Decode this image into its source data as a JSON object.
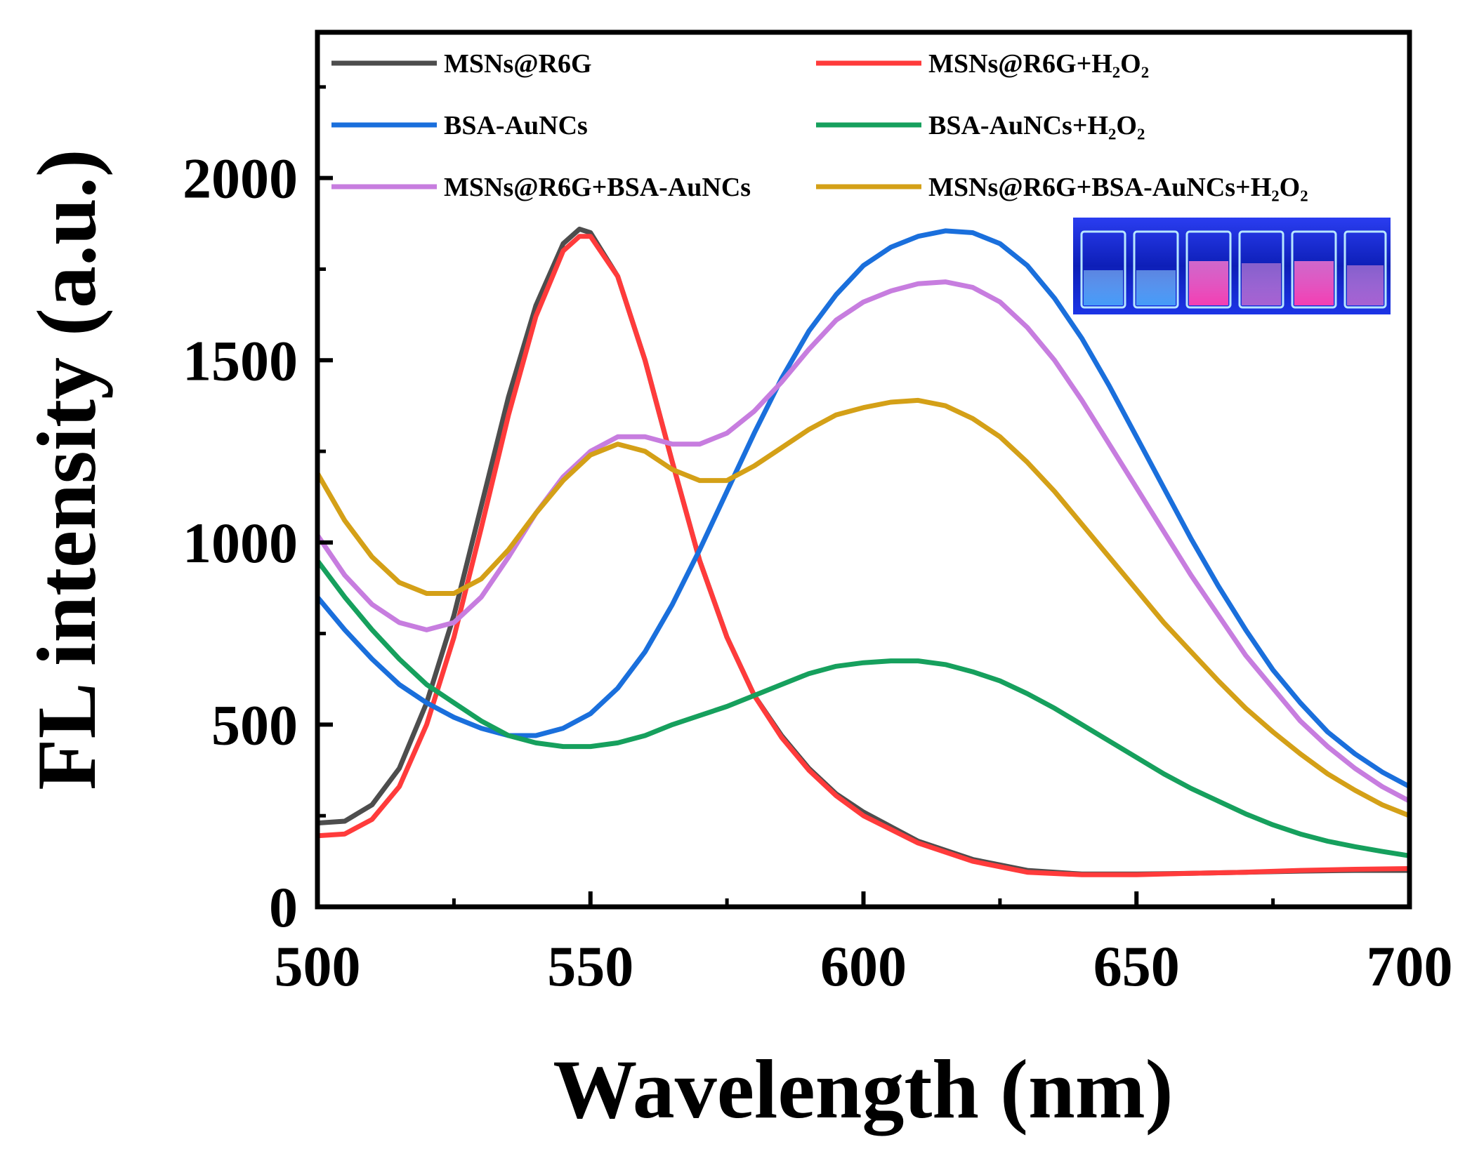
{
  "chart_data": {
    "type": "line",
    "xlabel": "Wavelength (nm)",
    "ylabel": "FL intensity (a.u.)",
    "xlim": [
      500,
      700
    ],
    "ylim": [
      0,
      2400
    ],
    "xticks": [
      500,
      550,
      600,
      650,
      700
    ],
    "xtick_labels": [
      "500",
      "550",
      "600",
      "650",
      "700"
    ],
    "yticks": [
      0,
      500,
      1000,
      1500,
      2000
    ],
    "ytick_labels": [
      "0",
      "500",
      "1000",
      "1500",
      "2000"
    ],
    "legend_position": "top",
    "series": [
      {
        "name": "MSNs@R6G",
        "color": "#4d4d4d",
        "points": [
          [
            500,
            230
          ],
          [
            505,
            235
          ],
          [
            510,
            280
          ],
          [
            515,
            380
          ],
          [
            520,
            560
          ],
          [
            525,
            800
          ],
          [
            530,
            1100
          ],
          [
            535,
            1400
          ],
          [
            540,
            1650
          ],
          [
            545,
            1820
          ],
          [
            548,
            1860
          ],
          [
            550,
            1850
          ],
          [
            555,
            1730
          ],
          [
            560,
            1500
          ],
          [
            565,
            1220
          ],
          [
            570,
            950
          ],
          [
            575,
            740
          ],
          [
            580,
            580
          ],
          [
            585,
            470
          ],
          [
            590,
            380
          ],
          [
            595,
            310
          ],
          [
            600,
            260
          ],
          [
            610,
            180
          ],
          [
            620,
            130
          ],
          [
            630,
            100
          ],
          [
            640,
            90
          ],
          [
            650,
            90
          ],
          [
            660,
            92
          ],
          [
            670,
            95
          ],
          [
            680,
            98
          ],
          [
            690,
            100
          ],
          [
            700,
            100
          ]
        ]
      },
      {
        "name": "MSNs@R6G+H₂O₂",
        "color": "#ff3b3b",
        "points": [
          [
            500,
            195
          ],
          [
            505,
            200
          ],
          [
            510,
            240
          ],
          [
            515,
            330
          ],
          [
            520,
            500
          ],
          [
            525,
            740
          ],
          [
            530,
            1040
          ],
          [
            535,
            1350
          ],
          [
            540,
            1620
          ],
          [
            545,
            1800
          ],
          [
            548,
            1840
          ],
          [
            550,
            1840
          ],
          [
            555,
            1730
          ],
          [
            560,
            1500
          ],
          [
            565,
            1220
          ],
          [
            570,
            950
          ],
          [
            575,
            740
          ],
          [
            580,
            580
          ],
          [
            585,
            465
          ],
          [
            590,
            375
          ],
          [
            595,
            305
          ],
          [
            600,
            250
          ],
          [
            610,
            175
          ],
          [
            620,
            125
          ],
          [
            630,
            95
          ],
          [
            640,
            88
          ],
          [
            650,
            88
          ],
          [
            660,
            92
          ],
          [
            670,
            95
          ],
          [
            680,
            100
          ],
          [
            690,
            103
          ],
          [
            700,
            105
          ]
        ]
      },
      {
        "name": "BSA-AuNCs",
        "color": "#1a6fdc",
        "points": [
          [
            500,
            850
          ],
          [
            505,
            760
          ],
          [
            510,
            680
          ],
          [
            515,
            610
          ],
          [
            520,
            560
          ],
          [
            525,
            520
          ],
          [
            530,
            490
          ],
          [
            535,
            470
          ],
          [
            540,
            470
          ],
          [
            545,
            490
          ],
          [
            550,
            530
          ],
          [
            555,
            600
          ],
          [
            560,
            700
          ],
          [
            565,
            830
          ],
          [
            570,
            980
          ],
          [
            575,
            1140
          ],
          [
            580,
            1300
          ],
          [
            585,
            1450
          ],
          [
            590,
            1580
          ],
          [
            595,
            1680
          ],
          [
            600,
            1760
          ],
          [
            605,
            1810
          ],
          [
            610,
            1840
          ],
          [
            615,
            1855
          ],
          [
            620,
            1850
          ],
          [
            625,
            1820
          ],
          [
            630,
            1760
          ],
          [
            635,
            1670
          ],
          [
            640,
            1560
          ],
          [
            645,
            1430
          ],
          [
            650,
            1290
          ],
          [
            655,
            1150
          ],
          [
            660,
            1010
          ],
          [
            665,
            880
          ],
          [
            670,
            760
          ],
          [
            675,
            650
          ],
          [
            680,
            560
          ],
          [
            685,
            480
          ],
          [
            690,
            420
          ],
          [
            695,
            370
          ],
          [
            700,
            330
          ]
        ]
      },
      {
        "name": "BSA-AuNCs+H₂O₂",
        "color": "#16a05d",
        "points": [
          [
            500,
            950
          ],
          [
            505,
            850
          ],
          [
            510,
            760
          ],
          [
            515,
            680
          ],
          [
            520,
            610
          ],
          [
            525,
            560
          ],
          [
            530,
            510
          ],
          [
            535,
            470
          ],
          [
            540,
            450
          ],
          [
            545,
            440
          ],
          [
            550,
            440
          ],
          [
            555,
            450
          ],
          [
            560,
            470
          ],
          [
            565,
            500
          ],
          [
            570,
            525
          ],
          [
            575,
            550
          ],
          [
            580,
            580
          ],
          [
            585,
            610
          ],
          [
            590,
            640
          ],
          [
            595,
            660
          ],
          [
            600,
            670
          ],
          [
            605,
            675
          ],
          [
            610,
            675
          ],
          [
            615,
            665
          ],
          [
            620,
            645
          ],
          [
            625,
            620
          ],
          [
            630,
            585
          ],
          [
            635,
            545
          ],
          [
            640,
            500
          ],
          [
            645,
            455
          ],
          [
            650,
            410
          ],
          [
            655,
            365
          ],
          [
            660,
            325
          ],
          [
            665,
            290
          ],
          [
            670,
            255
          ],
          [
            675,
            225
          ],
          [
            680,
            200
          ],
          [
            685,
            180
          ],
          [
            690,
            165
          ],
          [
            695,
            152
          ],
          [
            700,
            140
          ]
        ]
      },
      {
        "name": "MSNs@R6G+BSA-AuNCs",
        "color": "#c77ddf",
        "points": [
          [
            500,
            1020
          ],
          [
            505,
            910
          ],
          [
            510,
            830
          ],
          [
            515,
            780
          ],
          [
            520,
            760
          ],
          [
            525,
            780
          ],
          [
            530,
            850
          ],
          [
            535,
            960
          ],
          [
            540,
            1080
          ],
          [
            545,
            1180
          ],
          [
            550,
            1250
          ],
          [
            555,
            1290
          ],
          [
            560,
            1290
          ],
          [
            565,
            1270
          ],
          [
            570,
            1270
          ],
          [
            575,
            1300
          ],
          [
            580,
            1360
          ],
          [
            585,
            1440
          ],
          [
            590,
            1530
          ],
          [
            595,
            1610
          ],
          [
            600,
            1660
          ],
          [
            605,
            1690
          ],
          [
            610,
            1710
          ],
          [
            615,
            1715
          ],
          [
            620,
            1700
          ],
          [
            625,
            1660
          ],
          [
            630,
            1590
          ],
          [
            635,
            1500
          ],
          [
            640,
            1390
          ],
          [
            645,
            1270
          ],
          [
            650,
            1150
          ],
          [
            655,
            1030
          ],
          [
            660,
            910
          ],
          [
            665,
            800
          ],
          [
            670,
            690
          ],
          [
            675,
            600
          ],
          [
            680,
            510
          ],
          [
            685,
            440
          ],
          [
            690,
            380
          ],
          [
            695,
            330
          ],
          [
            700,
            290
          ]
        ]
      },
      {
        "name": "MSNs@R6G+BSA-AuNCs+H₂O₂",
        "color": "#d4a017",
        "points": [
          [
            500,
            1190
          ],
          [
            505,
            1060
          ],
          [
            510,
            960
          ],
          [
            515,
            890
          ],
          [
            520,
            860
          ],
          [
            525,
            860
          ],
          [
            530,
            900
          ],
          [
            535,
            980
          ],
          [
            540,
            1080
          ],
          [
            545,
            1170
          ],
          [
            550,
            1240
          ],
          [
            555,
            1270
          ],
          [
            560,
            1250
          ],
          [
            565,
            1200
          ],
          [
            570,
            1170
          ],
          [
            575,
            1170
          ],
          [
            580,
            1210
          ],
          [
            585,
            1260
          ],
          [
            590,
            1310
          ],
          [
            595,
            1350
          ],
          [
            600,
            1370
          ],
          [
            605,
            1385
          ],
          [
            610,
            1390
          ],
          [
            615,
            1375
          ],
          [
            620,
            1340
          ],
          [
            625,
            1290
          ],
          [
            630,
            1220
          ],
          [
            635,
            1140
          ],
          [
            640,
            1050
          ],
          [
            645,
            960
          ],
          [
            650,
            870
          ],
          [
            655,
            780
          ],
          [
            660,
            700
          ],
          [
            665,
            620
          ],
          [
            670,
            545
          ],
          [
            675,
            480
          ],
          [
            680,
            420
          ],
          [
            685,
            365
          ],
          [
            690,
            320
          ],
          [
            695,
            280
          ],
          [
            700,
            250
          ]
        ]
      }
    ]
  }
}
